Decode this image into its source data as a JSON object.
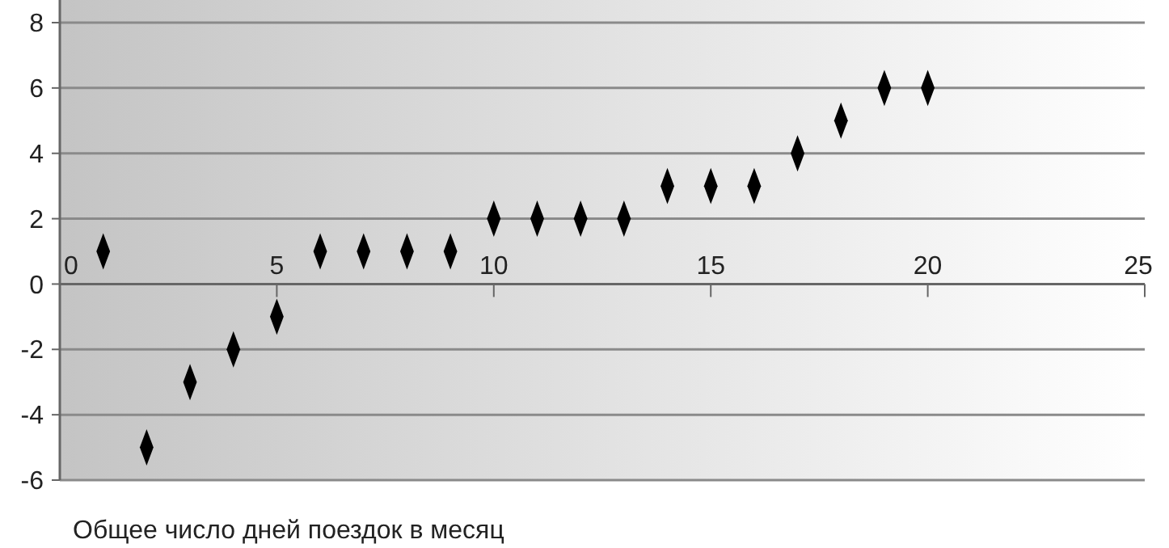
{
  "chart_data": {
    "type": "scatter",
    "xlabel": "Общее число дней поездок в месяц",
    "x": [
      1,
      2,
      3,
      4,
      5,
      6,
      7,
      8,
      9,
      10,
      11,
      12,
      13,
      14,
      15,
      16,
      17,
      18,
      19,
      20
    ],
    "series": [
      {
        "color": "#000000",
        "values": [
          1,
          -5,
          -3,
          -2,
          -1,
          1,
          1,
          1,
          1,
          2,
          2,
          2,
          2,
          3,
          3,
          3,
          4,
          5,
          6,
          6
        ]
      }
    ],
    "xlim": [
      0,
      25
    ],
    "xticks": [
      0,
      5,
      10,
      15,
      20,
      25
    ],
    "ylim": [
      -6,
      8
    ],
    "yticks": [
      -6,
      -4,
      -2,
      0,
      2,
      4,
      6,
      8
    ],
    "grid": "y",
    "marker": "diamond"
  }
}
